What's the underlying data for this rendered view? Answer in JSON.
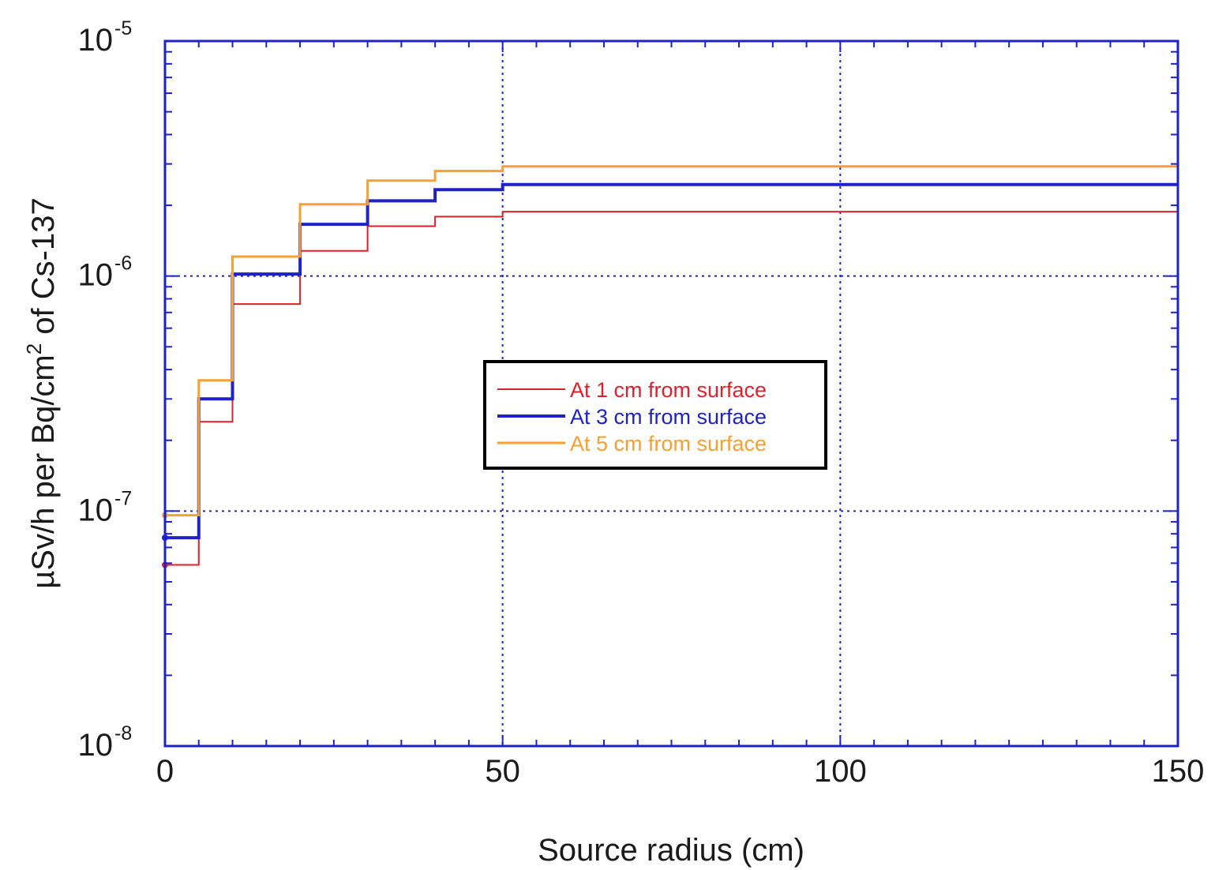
{
  "chart_data": {
    "type": "line",
    "step": true,
    "xlabel": "Source radius (cm)",
    "ylabel": {
      "prefix": "µSv/h per Bq/cm",
      "superscript": "2",
      "suffix": " of Cs-137"
    },
    "xlim": [
      0,
      150
    ],
    "ylim": [
      1e-08,
      1e-05
    ],
    "yscale": "log",
    "grid": true,
    "x_ticks": [
      "0",
      "50",
      "100",
      "150"
    ],
    "y_ticks": [
      {
        "base": "10",
        "exp": "-8"
      },
      {
        "base": "10",
        "exp": "-7"
      },
      {
        "base": "10",
        "exp": "-6"
      },
      {
        "base": "10",
        "exp": "-5"
      }
    ],
    "legend_position": "center",
    "x_edges": [
      0,
      5,
      10,
      20,
      30,
      40,
      50,
      150
    ],
    "series": [
      {
        "name": "At 1 cm  from surface",
        "color": "#e0202a",
        "values": [
          5.9e-08,
          2.4e-07,
          7.6e-07,
          1.28e-06,
          1.63e-06,
          1.79e-06,
          1.88e-06
        ]
      },
      {
        "name": "At 3 cm  from surface",
        "color": "#1e22c8",
        "values": [
          7.7e-08,
          3e-07,
          1.02e-06,
          1.66e-06,
          2.09e-06,
          2.33e-06,
          2.45e-06
        ]
      },
      {
        "name": "At 5 cm  from surface",
        "color": "#f5a030",
        "values": [
          9.6e-08,
          3.6e-07,
          1.21e-06,
          2.02e-06,
          2.55e-06,
          2.8e-06,
          2.93e-06
        ]
      }
    ]
  }
}
